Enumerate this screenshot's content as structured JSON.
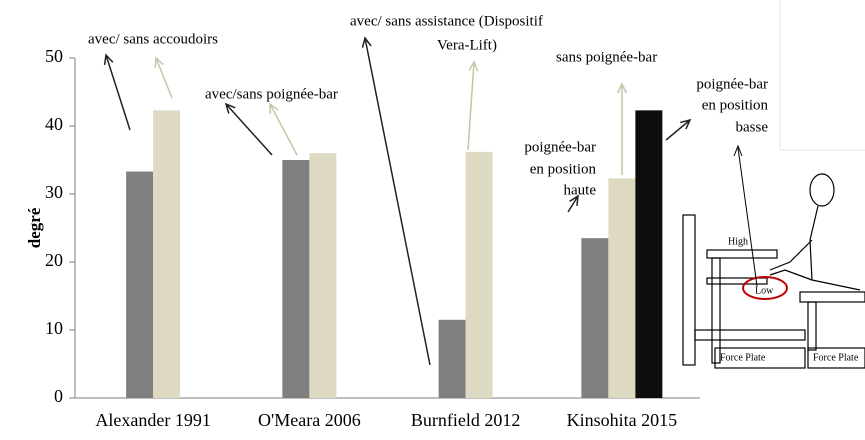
{
  "chart_data": {
    "type": "bar",
    "categories": [
      "Alexander 1991",
      "O'Meara 2006",
      "Burnfield 2012",
      "Kinsohita 2015"
    ],
    "y_label": "degré",
    "series": [
      {
        "color": "#7f7f7f",
        "values": [
          33.3,
          35,
          11.5,
          23.5
        ]
      },
      {
        "color": "#ddd9c3",
        "values": [
          42.3,
          36,
          36.2,
          32.3
        ]
      },
      {
        "color": "#0d0d0d",
        "values": [
          null,
          null,
          null,
          42.3
        ]
      }
    ],
    "ylim": [
      0,
      50
    ],
    "yticks": [
      0,
      10,
      20,
      30,
      40,
      50
    ],
    "annotations": [
      "avec/ sans accoudoirs",
      "avec/sans poignée-bar",
      "avec/ sans assistance (Dispositif",
      "Vera-Lift)",
      "sans poignée-bar",
      "poignée-bar",
      "en position",
      "basse",
      "poignée-bar",
      "en position",
      "haute"
    ]
  },
  "inset": {
    "labels": [
      "High",
      "Low",
      "Force Plate",
      "Force Plate"
    ]
  }
}
